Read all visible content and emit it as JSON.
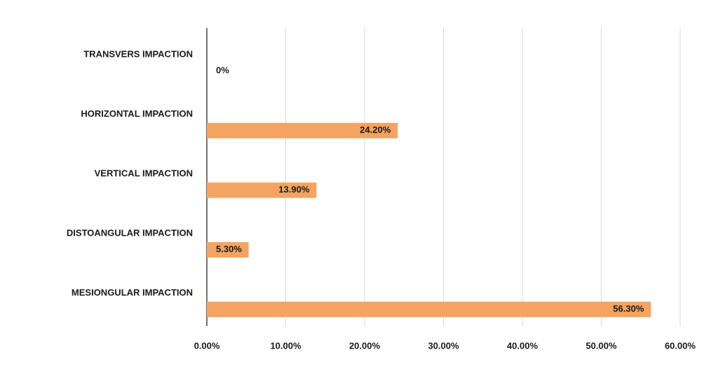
{
  "chart_data": {
    "type": "bar",
    "orientation": "horizontal",
    "categories": [
      "TRANSVERS IMPACTION",
      "HORIZONTAL IMPACTION",
      "VERTICAL IMPACTION",
      "DISTOANGULAR IMPACTION",
      "MESIONGULAR IMPACTION"
    ],
    "values": [
      0,
      24.2,
      13.9,
      5.3,
      56.3
    ],
    "value_labels": [
      "0%",
      "24.20%",
      "13.90%",
      "5.30%",
      "56.30%"
    ],
    "color": "#f4a460",
    "xlim": [
      0,
      60
    ],
    "xticks": [
      {
        "value": 0,
        "label": "0.00%"
      },
      {
        "value": 10,
        "label": "10.00%"
      },
      {
        "value": 20,
        "label": "20.00%"
      },
      {
        "value": 30,
        "label": "30.00%"
      },
      {
        "value": 40,
        "label": "40.00%"
      },
      {
        "value": 50,
        "label": "50.00%"
      },
      {
        "value": 60,
        "label": "60.00%"
      }
    ],
    "grid": true
  }
}
